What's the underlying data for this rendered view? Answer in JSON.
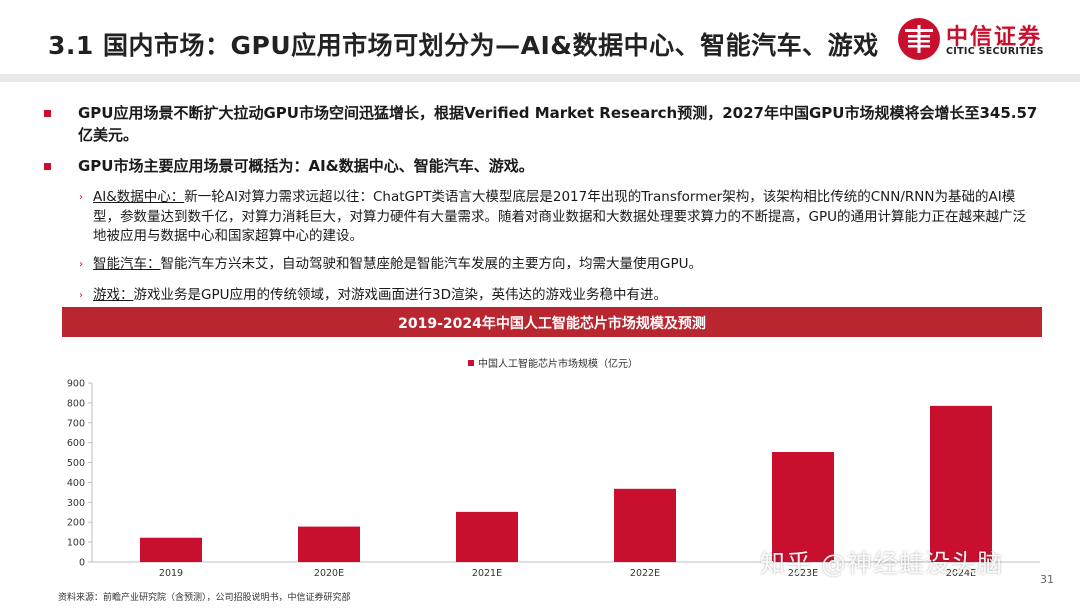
{
  "header": {
    "title": "3.1 国内市场：GPU应用市场可划分为—AI&数据中心、智能汽车、游戏",
    "logo_cn": "中信证券",
    "logo_en": "CITIC SECURITIES"
  },
  "bullets": [
    {
      "text": "GPU应用场景不断扩大拉动GPU市场空间迅猛增长，根据Verified Market Research预测，2027年中国GPU市场规模将会增长至345.57亿美元。"
    },
    {
      "text": "GPU市场主要应用场景可概括为：AI&数据中心、智能汽车、游戏。"
    }
  ],
  "sub_bullets": [
    {
      "label": "AI&数据中心：",
      "text": "新一轮AI对算力需求远超以往：ChatGPT类语言大模型底层是2017年出现的Transformer架构，该架构相比传统的CNN/RNN为基础的AI模型，参数量达到数千亿，对算力消耗巨大，对算力硬件有大量需求。随着对商业数据和大数据处理要求算力的不断提高，GPU的通用计算能力正在越来越广泛地被应用与数据中心和国家超算中心的建设。"
    },
    {
      "label": "智能汽车：",
      "text": "智能汽车方兴未艾，自动驾驶和智慧座舱是智能汽车发展的主要方向，均需大量使用GPU。"
    },
    {
      "label": "游戏：",
      "text": "游戏业务是GPU应用的传统领域，对游戏画面进行3D渲染，英伟达的游戏业务稳中有进。"
    }
  ],
  "chart_banner_title": "2019-2024年中国人工智能芯片市场规模及预测",
  "chart_data": {
    "type": "bar",
    "categories": [
      "2019",
      "2020E",
      "2021E",
      "2022E",
      "2023E",
      "2024E"
    ],
    "series": [
      {
        "name": "中国人工智能芯片市场规模（亿元）",
        "values": [
          122,
          178,
          252,
          368,
          553,
          785
        ],
        "color": "#c8102e"
      }
    ],
    "ylim": [
      0,
      900
    ],
    "yticks": [
      0,
      100,
      200,
      300,
      400,
      500,
      600,
      700,
      800,
      900
    ],
    "grid": false,
    "legend_position": "top-center"
  },
  "footer": {
    "source": "资料来源：前瞻产业研究院（含预测），公司招股说明书，中信证券研究部",
    "page": "31",
    "watermark": "知乎 @神经蛙没头脑"
  }
}
